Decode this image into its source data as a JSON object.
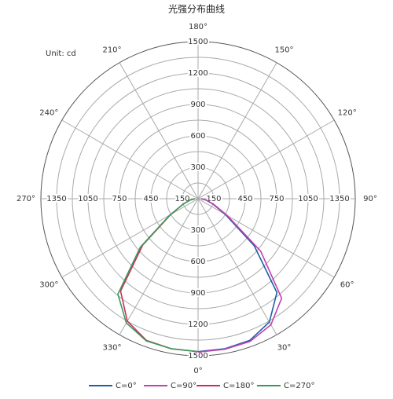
{
  "chart_data": {
    "type": "polar",
    "title": "光强分布曲线",
    "unit_label": "Unit: cd",
    "rlim": [
      0,
      1500
    ],
    "rticks": [
      150,
      300,
      450,
      600,
      750,
      900,
      1050,
      1200,
      1350,
      1500
    ],
    "angle_ticks": [
      {
        "value": 0,
        "label": "0°"
      },
      {
        "value": 30,
        "label": "30°"
      },
      {
        "value": 60,
        "label": "60°"
      },
      {
        "value": 90,
        "label": "90°"
      },
      {
        "value": 120,
        "label": "120°"
      },
      {
        "value": 150,
        "label": "150°"
      },
      {
        "value": 180,
        "label": "180°"
      },
      {
        "value": 210,
        "label": "210°"
      },
      {
        "value": 240,
        "label": "240°"
      },
      {
        "value": 270,
        "label": "270°"
      },
      {
        "value": 300,
        "label": "300°"
      },
      {
        "value": 330,
        "label": "330°"
      }
    ],
    "series": [
      {
        "name": "C=0°",
        "color": "#1f5fa8",
        "theta": [
          0,
          10,
          20,
          30,
          40,
          50,
          60,
          70,
          80,
          90
        ],
        "values": [
          1460,
          1455,
          1440,
          1360,
          1170,
          700,
          300,
          150,
          80,
          30
        ]
      },
      {
        "name": "C=90°",
        "color": "#c040b0",
        "theta": [
          0,
          10,
          20,
          30,
          40,
          50,
          60,
          70,
          80,
          90
        ],
        "values": [
          1465,
          1460,
          1450,
          1390,
          1240,
          780,
          320,
          160,
          85,
          30
        ]
      },
      {
        "name": "C=180°",
        "color": "#c8305a",
        "theta": [
          360,
          350,
          340,
          330,
          320,
          310,
          300,
          290,
          280,
          270
        ],
        "values": [
          1460,
          1455,
          1440,
          1350,
          1150,
          690,
          300,
          150,
          80,
          30
        ]
      },
      {
        "name": "C=270°",
        "color": "#3a9a5a",
        "theta": [
          360,
          350,
          340,
          330,
          320,
          310,
          300,
          290,
          280,
          270
        ],
        "values": [
          1460,
          1455,
          1445,
          1370,
          1190,
          720,
          310,
          150,
          80,
          30
        ]
      }
    ]
  }
}
